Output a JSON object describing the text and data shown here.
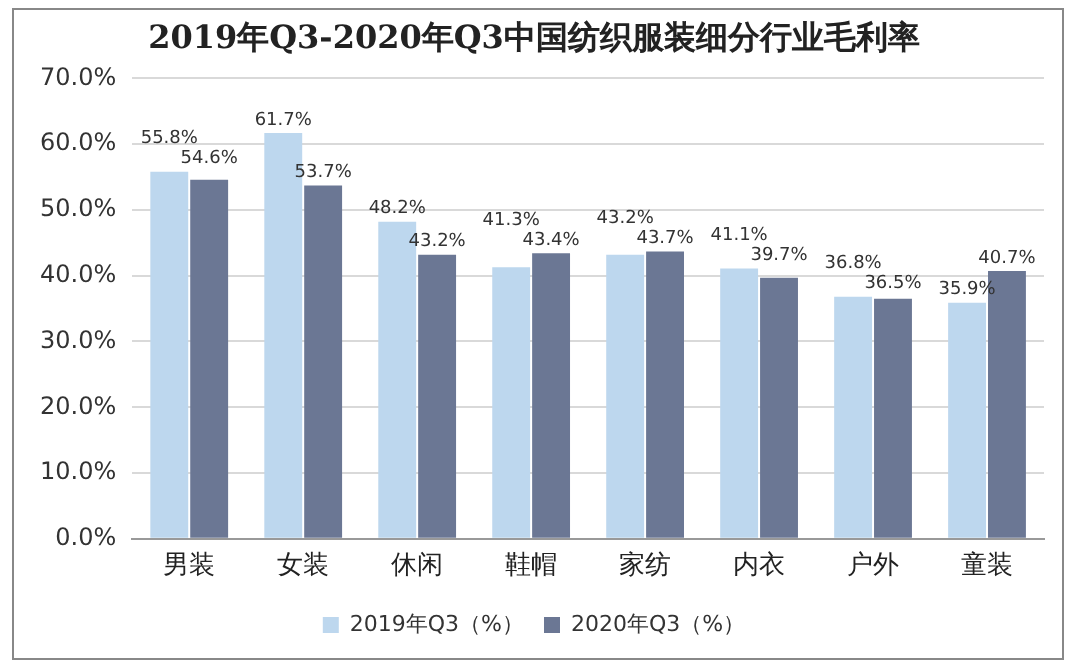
{
  "chart_data": {
    "type": "bar",
    "title": "2019年Q3-2020年Q3中国纺织服装细分行业毛利率",
    "categories": [
      "男装",
      "女装",
      "休闲",
      "鞋帽",
      "家纺",
      "内衣",
      "户外",
      "童装"
    ],
    "series": [
      {
        "name": "2019年Q3（%）",
        "color": "#bdd7ee",
        "values": [
          55.8,
          61.7,
          48.2,
          41.3,
          43.2,
          41.1,
          36.8,
          35.9
        ],
        "value_labels": [
          "55.8%",
          "61.7%",
          "48.2%",
          "41.3%",
          "43.2%",
          "41.1%",
          "36.8%",
          "35.9%"
        ]
      },
      {
        "name": "2020年Q3（%）",
        "color": "#6b7794",
        "values": [
          54.6,
          53.7,
          43.2,
          43.4,
          43.7,
          39.7,
          36.5,
          40.7
        ],
        "value_labels": [
          "54.6%",
          "53.7%",
          "43.2%",
          "43.4%",
          "43.7%",
          "39.7%",
          "36.5%",
          "40.7%"
        ]
      }
    ],
    "ylim": [
      0,
      70
    ],
    "yticks": [
      {
        "value": 0,
        "label": "0.0%"
      },
      {
        "value": 10,
        "label": "10.0%"
      },
      {
        "value": 20,
        "label": "20.0%"
      },
      {
        "value": 30,
        "label": "30.0%"
      },
      {
        "value": 40,
        "label": "40.0%"
      },
      {
        "value": 50,
        "label": "50.0%"
      },
      {
        "value": 60,
        "label": "60.0%"
      },
      {
        "value": 70,
        "label": "70.0%"
      }
    ],
    "grid": "y",
    "legend": "bottom"
  }
}
